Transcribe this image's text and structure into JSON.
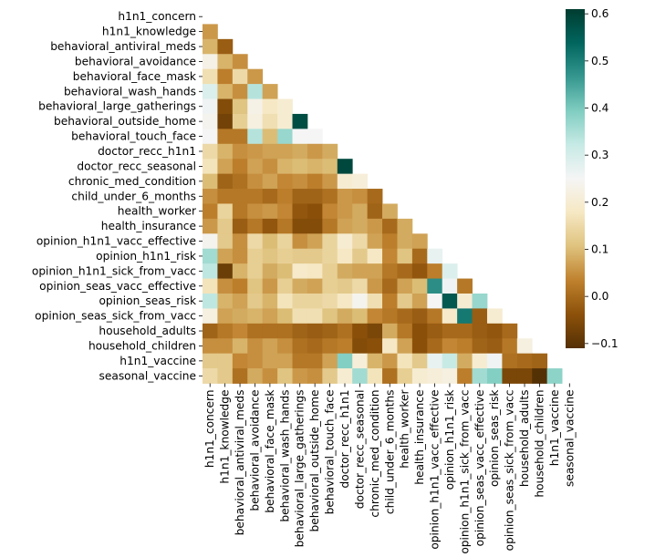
{
  "chart_data": {
    "type": "heatmap",
    "variant": "lower-triangle correlation matrix (diagonal and upper triangle masked)",
    "colormap": "BrBG",
    "colorbar": {
      "range": [
        -0.11,
        0.61
      ],
      "ticks": [
        -0.1,
        0.0,
        0.1,
        0.2,
        0.3,
        0.4,
        0.5,
        0.6
      ],
      "tick_labels": [
        "−0.1",
        "0.0",
        "0.1",
        "0.2",
        "0.3",
        "0.4",
        "0.5",
        "0.6"
      ]
    },
    "variables": [
      "h1n1_concern",
      "h1n1_knowledge",
      "behavioral_antiviral_meds",
      "behavioral_avoidance",
      "behavioral_face_mask",
      "behavioral_wash_hands",
      "behavioral_large_gatherings",
      "behavioral_outside_home",
      "behavioral_touch_face",
      "doctor_recc_h1n1",
      "doctor_recc_seasonal",
      "chronic_med_condition",
      "child_under_6_months",
      "health_worker",
      "health_insurance",
      "opinion_h1n1_vacc_effective",
      "opinion_h1n1_risk",
      "opinion_h1n1_sick_from_vacc",
      "opinion_seas_vacc_effective",
      "opinion_seas_risk",
      "opinion_seas_sick_from_vacc",
      "household_adults",
      "household_children",
      "h1n1_vaccine",
      "seasonal_vaccine"
    ],
    "values": [
      [],
      [
        0.06
      ],
      [
        0.09,
        -0.02
      ],
      [
        0.23,
        0.09,
        0.05
      ],
      [
        0.16,
        0.03,
        0.15,
        0.06
      ],
      [
        0.29,
        0.09,
        0.05,
        0.34,
        0.07
      ],
      [
        0.26,
        -0.05,
        0.11,
        0.23,
        0.18,
        0.2
      ],
      [
        0.24,
        -0.07,
        0.13,
        0.22,
        0.16,
        0.2,
        0.58
      ],
      [
        0.25,
        0.02,
        0.02,
        0.34,
        0.1,
        0.37,
        0.25,
        0.25
      ],
      [
        0.15,
        0.09,
        0.05,
        0.06,
        0.07,
        0.07,
        0.08,
        0.06,
        0.08
      ],
      [
        0.17,
        0.07,
        0.03,
        0.07,
        0.05,
        0.09,
        0.1,
        0.09,
        0.1,
        0.59
      ],
      [
        0.1,
        -0.01,
        0.01,
        0.05,
        0.07,
        0.04,
        0.05,
        0.03,
        0.06,
        0.2,
        0.21
      ],
      [
        0.05,
        0.02,
        0.02,
        0.02,
        0.0,
        0.03,
        -0.01,
        -0.01,
        0.01,
        0.06,
        0.05,
        0.0
      ],
      [
        0.03,
        0.14,
        0.02,
        0.05,
        0.06,
        0.04,
        -0.03,
        -0.04,
        0.04,
        0.06,
        0.08,
        -0.01,
        0.08
      ],
      [
        0.06,
        0.12,
        -0.02,
        0.02,
        -0.03,
        0.02,
        -0.05,
        -0.05,
        0.02,
        0.07,
        0.08,
        0.06,
        0.0,
        0.08
      ],
      [
        0.24,
        0.12,
        0.05,
        0.15,
        0.1,
        0.14,
        0.05,
        0.07,
        0.14,
        0.2,
        0.15,
        0.07,
        0.03,
        0.08,
        0.07
      ],
      [
        0.36,
        0.07,
        0.05,
        0.13,
        0.11,
        0.13,
        0.12,
        0.12,
        0.14,
        0.18,
        0.12,
        0.18,
        0.04,
        0.11,
        0.0,
        0.27
      ],
      [
        0.33,
        -0.08,
        0.09,
        0.13,
        0.08,
        0.1,
        0.19,
        0.18,
        0.13,
        0.08,
        0.07,
        0.07,
        0.02,
        0.0,
        -0.03,
        0.03,
        0.29
      ],
      [
        0.17,
        0.05,
        0.03,
        0.11,
        0.06,
        0.13,
        0.08,
        0.07,
        0.13,
        0.12,
        0.15,
        0.06,
        0.0,
        0.07,
        0.1,
        0.48,
        0.26,
        0.02
      ],
      [
        0.33,
        0.09,
        0.07,
        0.12,
        0.09,
        0.17,
        0.14,
        0.14,
        0.15,
        0.18,
        0.24,
        0.16,
        0.03,
        0.12,
        0.07,
        0.25,
        0.56,
        0.2,
        0.37
      ],
      [
        0.22,
        0.07,
        0.08,
        0.09,
        0.07,
        0.1,
        0.16,
        0.16,
        0.11,
        0.08,
        0.1,
        0.04,
        0.02,
        0.0,
        -0.02,
        0.02,
        0.19,
        0.51,
        -0.02,
        0.2
      ],
      [
        -0.01,
        0.02,
        0.04,
        0.01,
        0.01,
        0.01,
        -0.01,
        -0.02,
        -0.01,
        0.01,
        -0.04,
        -0.06,
        0.08,
        0.02,
        -0.04,
        -0.02,
        0.0,
        0.0,
        -0.02,
        -0.03,
        0.0
      ],
      [
        0.05,
        0.05,
        0.09,
        0.05,
        0.07,
        0.05,
        0.01,
        0.0,
        0.02,
        0.03,
        -0.05,
        -0.04,
        0.18,
        0.07,
        -0.04,
        0.0,
        0.04,
        0.03,
        -0.01,
        -0.02,
        0.02,
        0.22
      ],
      [
        0.12,
        0.12,
        0.04,
        0.05,
        0.07,
        0.07,
        0.02,
        0.02,
        0.07,
        0.39,
        0.21,
        0.09,
        0.06,
        0.17,
        0.12,
        0.27,
        0.32,
        0.08,
        0.2,
        0.26,
        0.01,
        0.0,
        -0.01
      ],
      [
        0.15,
        0.12,
        0.01,
        0.08,
        0.05,
        0.11,
        0.06,
        0.05,
        0.12,
        0.2,
        0.36,
        0.17,
        0.01,
        0.13,
        0.2,
        0.21,
        0.22,
        0.03,
        0.36,
        0.39,
        -0.06,
        -0.06,
        -0.11,
        0.38
      ]
    ]
  }
}
